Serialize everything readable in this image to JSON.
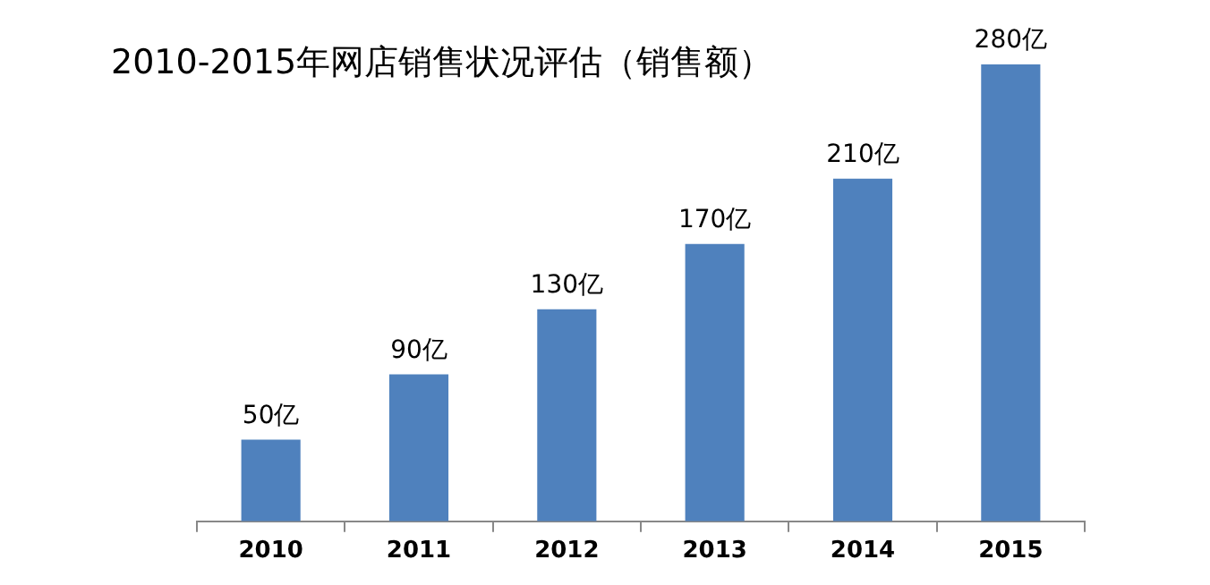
{
  "chart_data": {
    "type": "bar",
    "title": "2010-2015年网店销售状况评估（销售额）",
    "categories": [
      "2010",
      "2011",
      "2012",
      "2013",
      "2014",
      "2015"
    ],
    "values": [
      50,
      90,
      130,
      170,
      210,
      280
    ],
    "value_labels": [
      "50亿",
      "90亿",
      "130亿",
      "170亿",
      "210亿",
      "280亿"
    ],
    "color": "#4f81bd",
    "grid": false,
    "legend": false
  }
}
